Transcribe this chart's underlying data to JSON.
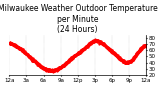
{
  "title": "Milwaukee Weather Outdoor Temperature\nper Minute\n(24 Hours)",
  "line_color": "#ff0000",
  "bg_color": "#ffffff",
  "plot_bg_color": "#ffffff",
  "grid_color": "#aaaaaa",
  "ylim": [
    20,
    85
  ],
  "yticks": [
    20,
    30,
    40,
    50,
    60,
    70,
    80
  ],
  "time_points": [
    0,
    30,
    60,
    90,
    120,
    150,
    180,
    210,
    240,
    270,
    300,
    330,
    360,
    390,
    420,
    450,
    480,
    510,
    540,
    570,
    600,
    630,
    660,
    690,
    720,
    750,
    780,
    810,
    840,
    870,
    900,
    930,
    960,
    990,
    1020,
    1050,
    1080,
    1110,
    1140,
    1170,
    1200,
    1230,
    1260,
    1290,
    1320,
    1350,
    1380,
    1410,
    1440
  ],
  "temp_values": [
    72,
    70,
    68,
    65,
    62,
    58,
    54,
    50,
    45,
    42,
    38,
    34,
    31,
    29,
    28,
    27,
    28,
    30,
    33,
    36,
    40,
    44,
    48,
    52,
    55,
    58,
    62,
    66,
    70,
    74,
    76,
    75,
    73,
    70,
    66,
    62,
    58,
    54,
    50,
    46,
    42,
    40,
    41,
    44,
    50,
    56,
    62,
    66,
    68
  ],
  "xtick_positions": [
    0,
    180,
    360,
    540,
    720,
    900,
    1080,
    1260,
    1440
  ],
  "xtick_labels": [
    "12a",
    "3a",
    "6a",
    "9a",
    "12p",
    "3p",
    "6p",
    "9p",
    "12a"
  ],
  "title_fontsize": 5.5,
  "tick_fontsize": 4,
  "markersize": 1.2,
  "linewidth": 0.5
}
